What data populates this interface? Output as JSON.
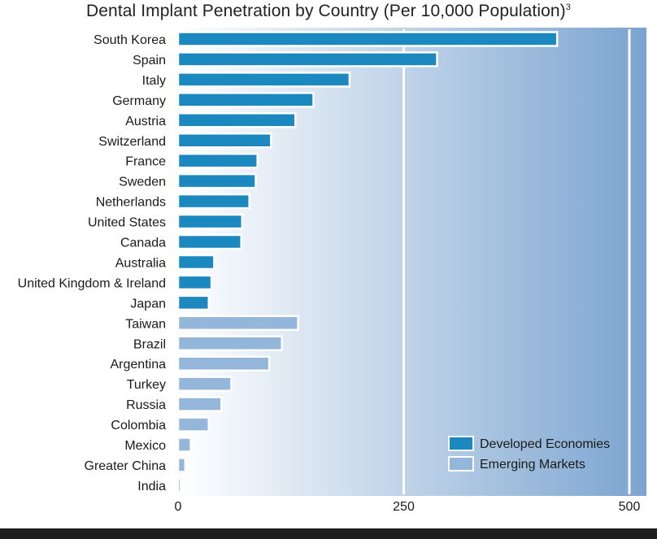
{
  "chart_data": {
    "type": "bar",
    "orientation": "horizontal",
    "title": "Dental Implant Penetration by Country (Per 10,000 Population)",
    "title_footnote": "3",
    "xlabel": "",
    "ylabel": "",
    "xlim": [
      0,
      520
    ],
    "xticks": [
      0,
      250,
      500
    ],
    "gridlines": [
      250,
      500
    ],
    "categories": [
      "South Korea",
      "Spain",
      "Italy",
      "Germany",
      "Austria",
      "Switzerland",
      "France",
      "Sweden",
      "Netherlands",
      "United States",
      "Canada",
      "Australia",
      "United Kingdom & Ireland",
      "Japan",
      "Taiwan",
      "Brazil",
      "Argentina",
      "Turkey",
      "Russia",
      "Colombia",
      "Mexico",
      "Greater China",
      "India"
    ],
    "values": [
      420,
      287,
      190,
      150,
      130,
      103,
      88,
      86,
      79,
      71,
      70,
      40,
      37,
      34,
      133,
      115,
      101,
      59,
      48,
      34,
      14,
      8,
      3
    ],
    "groups": [
      "Developed Economies",
      "Developed Economies",
      "Developed Economies",
      "Developed Economies",
      "Developed Economies",
      "Developed Economies",
      "Developed Economies",
      "Developed Economies",
      "Developed Economies",
      "Developed Economies",
      "Developed Economies",
      "Developed Economies",
      "Developed Economies",
      "Developed Economies",
      "Emerging Markets",
      "Emerging Markets",
      "Emerging Markets",
      "Emerging Markets",
      "Emerging Markets",
      "Emerging Markets",
      "Emerging Markets",
      "Emerging Markets",
      "Emerging Markets"
    ],
    "legend": [
      {
        "label": "Developed Economies",
        "color": "#1b88bf"
      },
      {
        "label": "Emerging Markets",
        "color": "#94b6db"
      }
    ],
    "legend_position": "bottom-right",
    "background_gradient": [
      "#ffffff",
      "#7ba4d0"
    ]
  }
}
